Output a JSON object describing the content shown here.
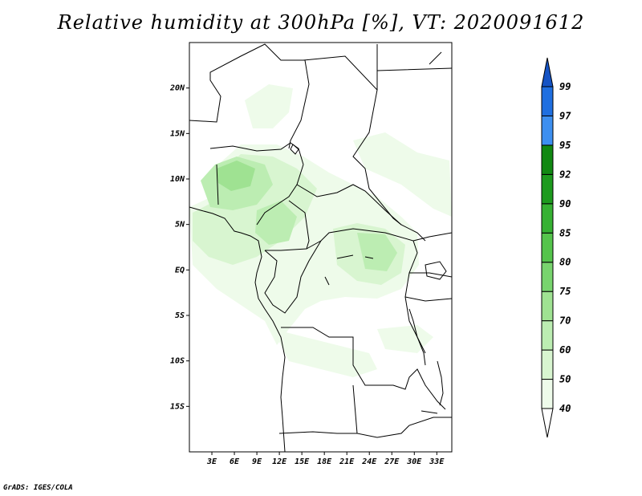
{
  "title": "Relative humidity at 300hPa [%], VT: 2020091612",
  "credit": "GrADS: IGES/COLA",
  "map": {
    "lat_range": [
      -20,
      25
    ],
    "lon_range": [
      0,
      35
    ],
    "lat_ticks": [
      {
        "value": 20,
        "label": "20N"
      },
      {
        "value": 15,
        "label": "15N"
      },
      {
        "value": 10,
        "label": "10N"
      },
      {
        "value": 5,
        "label": "5N"
      },
      {
        "value": 0,
        "label": "EQ"
      },
      {
        "value": -5,
        "label": "5S"
      },
      {
        "value": -10,
        "label": "10S"
      },
      {
        "value": -15,
        "label": "15S"
      }
    ],
    "lon_ticks": [
      {
        "value": 3,
        "label": "3E"
      },
      {
        "value": 6,
        "label": "6E"
      },
      {
        "value": 9,
        "label": "9E"
      },
      {
        "value": 12,
        "label": "12E"
      },
      {
        "value": 15,
        "label": "15E"
      },
      {
        "value": 18,
        "label": "18E"
      },
      {
        "value": 21,
        "label": "21E"
      },
      {
        "value": 24,
        "label": "24E"
      },
      {
        "value": 27,
        "label": "27E"
      },
      {
        "value": 30,
        "label": "30E"
      },
      {
        "value": 33,
        "label": "33E"
      }
    ]
  },
  "colorbar": {
    "levels": [
      "40",
      "50",
      "60",
      "70",
      "75",
      "80",
      "85",
      "90",
      "92",
      "95",
      "97",
      "99"
    ],
    "colors": [
      "#ffffff",
      "#eefbea",
      "#d8f5d0",
      "#bcedb2",
      "#9fe292",
      "#78d46e",
      "#55c44c",
      "#36b133",
      "#1d9a1e",
      "#118812",
      "#3d8ff0",
      "#1f6fe0",
      "#1553c4"
    ]
  },
  "colors": {
    "land_line": "#000000",
    "humidity_low": "#eefbea",
    "humidity_mid": "#bcedb2",
    "humidity_high": "#78d46e"
  }
}
